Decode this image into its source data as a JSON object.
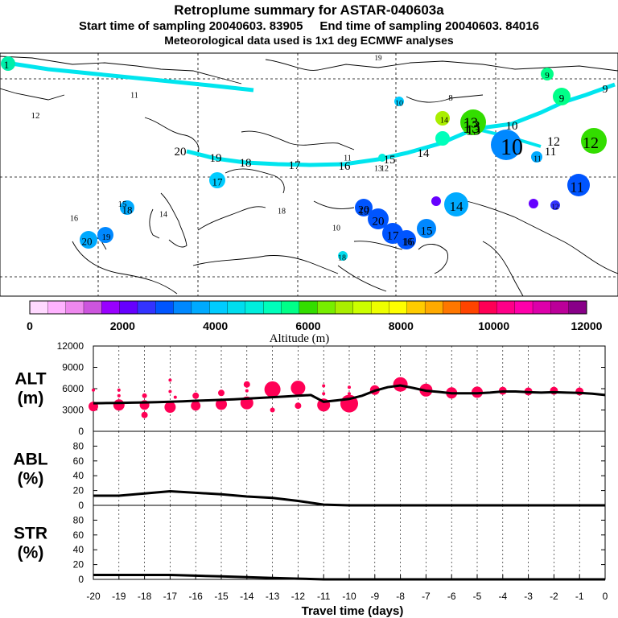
{
  "title": "Retroplume summary for ASTAR-040603a",
  "subtitle": "Start time of sampling 20040603. 83905     End time of sampling 20040603. 84016",
  "subtitle2": "Meteorological data used is 1x1 deg ECMWF analyses",
  "chart_data": [
    {
      "type": "scatter",
      "name": "retroplume-map",
      "description_units": "plume centroid positions labelled by travel day, colored by altitude",
      "track_labels": [
        1,
        20,
        19,
        18,
        17,
        16,
        15,
        14,
        13,
        12,
        11,
        10,
        9
      ],
      "cluster_labels": [
        19,
        11,
        12,
        10,
        8,
        9,
        13,
        14,
        13,
        10,
        12,
        11,
        17,
        20,
        15,
        18,
        14,
        16,
        18,
        11,
        12,
        13,
        16,
        20,
        19,
        17,
        16,
        15,
        14,
        11,
        12,
        10,
        18,
        20,
        19,
        9
      ]
    },
    {
      "type": "bar",
      "name": "altitude-colorbar",
      "xlabel": "Altitude (m)",
      "tick_labels": [
        "0",
        "2000",
        "4000",
        "6000",
        "8000",
        "10000",
        "12000"
      ],
      "range": [
        0,
        12000
      ],
      "colors": [
        "#ffd9ff",
        "#ffb3ff",
        "#ee88ee",
        "#cc55dd",
        "#9900ff",
        "#6600ff",
        "#3333ff",
        "#0055ff",
        "#0088ff",
        "#00aaff",
        "#00ccff",
        "#00ddee",
        "#00eedd",
        "#00ffbb",
        "#00ff88",
        "#33dd00",
        "#77ee00",
        "#aaee00",
        "#ccff00",
        "#eeff00",
        "#ffff00",
        "#ffcc00",
        "#ffaa00",
        "#ff7700",
        "#ff4400",
        "#ff0055",
        "#ff0088",
        "#ff00aa",
        "#dd00aa",
        "#bb0099",
        "#880088"
      ]
    },
    {
      "type": "scatter",
      "name": "alt",
      "ylabel": "ALT\n(m)",
      "ylabel_lines": [
        "ALT",
        "(m)"
      ],
      "ylim": [
        0,
        12000
      ],
      "yticks": [
        "0",
        "3000",
        "6000",
        "9000",
        "12000"
      ],
      "x": [
        -20,
        -19.5,
        -19,
        -18.5,
        -18,
        -17.5,
        -17,
        -16.5,
        -16,
        -15.5,
        -15,
        -14.5,
        -14,
        -13.5,
        -13,
        -12.5,
        -12,
        -11.5,
        -11,
        -10.5,
        -10,
        -9.5,
        -9,
        -8.5,
        -8,
        -7.5,
        -7,
        -6.5,
        -6,
        -5.5,
        -5,
        -4.5,
        -4,
        -3.5,
        -3,
        -2.5,
        -2,
        -1.5,
        -1,
        -0.5,
        0
      ],
      "mean_altitude": [
        3950,
        3970,
        4000,
        4030,
        4060,
        4100,
        4150,
        4220,
        4300,
        4360,
        4430,
        4500,
        4600,
        4700,
        4800,
        4900,
        5000,
        5100,
        4150,
        4350,
        4550,
        5000,
        5700,
        6200,
        6450,
        6100,
        5700,
        5550,
        5350,
        5350,
        5350,
        5450,
        5600,
        5600,
        5500,
        5450,
        5500,
        5450,
        5400,
        5300,
        5100
      ],
      "scatter_points": [
        {
          "x": -20,
          "y": 3500,
          "s": 6
        },
        {
          "x": -20,
          "y": 5800,
          "s": 2
        },
        {
          "x": -19,
          "y": 3700,
          "s": 7
        },
        {
          "x": -19,
          "y": 5000,
          "s": 2
        },
        {
          "x": -19,
          "y": 5800,
          "s": 2
        },
        {
          "x": -18,
          "y": 3700,
          "s": 6
        },
        {
          "x": -18,
          "y": 2300,
          "s": 4
        },
        {
          "x": -18,
          "y": 5000,
          "s": 3
        },
        {
          "x": -17,
          "y": 3400,
          "s": 7
        },
        {
          "x": -17,
          "y": 5600,
          "s": 2
        },
        {
          "x": -17,
          "y": 7200,
          "s": 2
        },
        {
          "x": -16,
          "y": 3600,
          "s": 6
        },
        {
          "x": -16,
          "y": 5000,
          "s": 4
        },
        {
          "x": -16.8,
          "y": 4800,
          "s": 2
        },
        {
          "x": -15,
          "y": 3800,
          "s": 7
        },
        {
          "x": -15,
          "y": 5400,
          "s": 4
        },
        {
          "x": -14,
          "y": 4000,
          "s": 8
        },
        {
          "x": -14,
          "y": 6600,
          "s": 4
        },
        {
          "x": -14,
          "y": 5700,
          "s": 2
        },
        {
          "x": -13,
          "y": 5900,
          "s": 10
        },
        {
          "x": -13,
          "y": 3000,
          "s": 3
        },
        {
          "x": -12,
          "y": 6100,
          "s": 9
        },
        {
          "x": -12,
          "y": 3600,
          "s": 4
        },
        {
          "x": -11,
          "y": 3700,
          "s": 8
        },
        {
          "x": -11,
          "y": 5300,
          "s": 2
        },
        {
          "x": -11,
          "y": 6400,
          "s": 2
        },
        {
          "x": -10,
          "y": 3900,
          "s": 11
        },
        {
          "x": -10,
          "y": 5300,
          "s": 2
        },
        {
          "x": -10,
          "y": 6200,
          "s": 2
        },
        {
          "x": -9,
          "y": 5800,
          "s": 6
        },
        {
          "x": -8,
          "y": 6600,
          "s": 9
        },
        {
          "x": -7,
          "y": 5800,
          "s": 8
        },
        {
          "x": -6,
          "y": 5400,
          "s": 7
        },
        {
          "x": -5,
          "y": 5500,
          "s": 7
        },
        {
          "x": -4,
          "y": 5700,
          "s": 5
        },
        {
          "x": -3,
          "y": 5600,
          "s": 5
        },
        {
          "x": -2,
          "y": 5700,
          "s": 5
        },
        {
          "x": -1,
          "y": 5600,
          "s": 5
        }
      ]
    },
    {
      "type": "line",
      "name": "abl",
      "ylabel_lines": [
        "ABL",
        "(%)"
      ],
      "ylim": [
        0,
        100
      ],
      "yticks": [
        "0",
        "20",
        "40",
        "60",
        "80"
      ],
      "x": [
        -20,
        -19,
        -18,
        -17,
        -16,
        -15,
        -14,
        -13,
        -12,
        -11,
        -10,
        -9,
        -8,
        -7,
        -6,
        -5,
        -4,
        -3,
        -2,
        -1,
        0
      ],
      "values": [
        13,
        13,
        16,
        19,
        17,
        15,
        12,
        10,
        6,
        1,
        0,
        0,
        0,
        0,
        0,
        0,
        0,
        0,
        0,
        0,
        0
      ]
    },
    {
      "type": "line",
      "name": "str",
      "ylabel_lines": [
        "STR",
        "(%)"
      ],
      "ylim": [
        0,
        100
      ],
      "yticks": [
        "0",
        "20",
        "40",
        "60",
        "80"
      ],
      "x": [
        -20,
        -19,
        -18,
        -17,
        -16,
        -15,
        -14,
        -13,
        -12,
        -11,
        -10,
        -9,
        -8,
        -7,
        -6,
        -5,
        -4,
        -3,
        -2,
        -1,
        0
      ],
      "values": [
        6,
        6,
        6,
        6,
        5,
        4,
        3,
        2,
        1,
        0,
        0,
        0,
        0,
        0,
        0,
        0,
        0,
        0,
        0,
        0,
        0
      ]
    }
  ],
  "xaxis": {
    "label": "Travel time (days)",
    "ticks": [
      "-20",
      "-19",
      "-18",
      "-17",
      "-16",
      "-15",
      "-14",
      "-13",
      "-12",
      "-11",
      "-10",
      "-9",
      "-8",
      "-7",
      "-6",
      "-5",
      "-4",
      "-3",
      "-2",
      "-1",
      "0"
    ]
  },
  "colors": {
    "track": "#00e5ee",
    "alt_points": "#ff0055",
    "line": "#000000"
  }
}
